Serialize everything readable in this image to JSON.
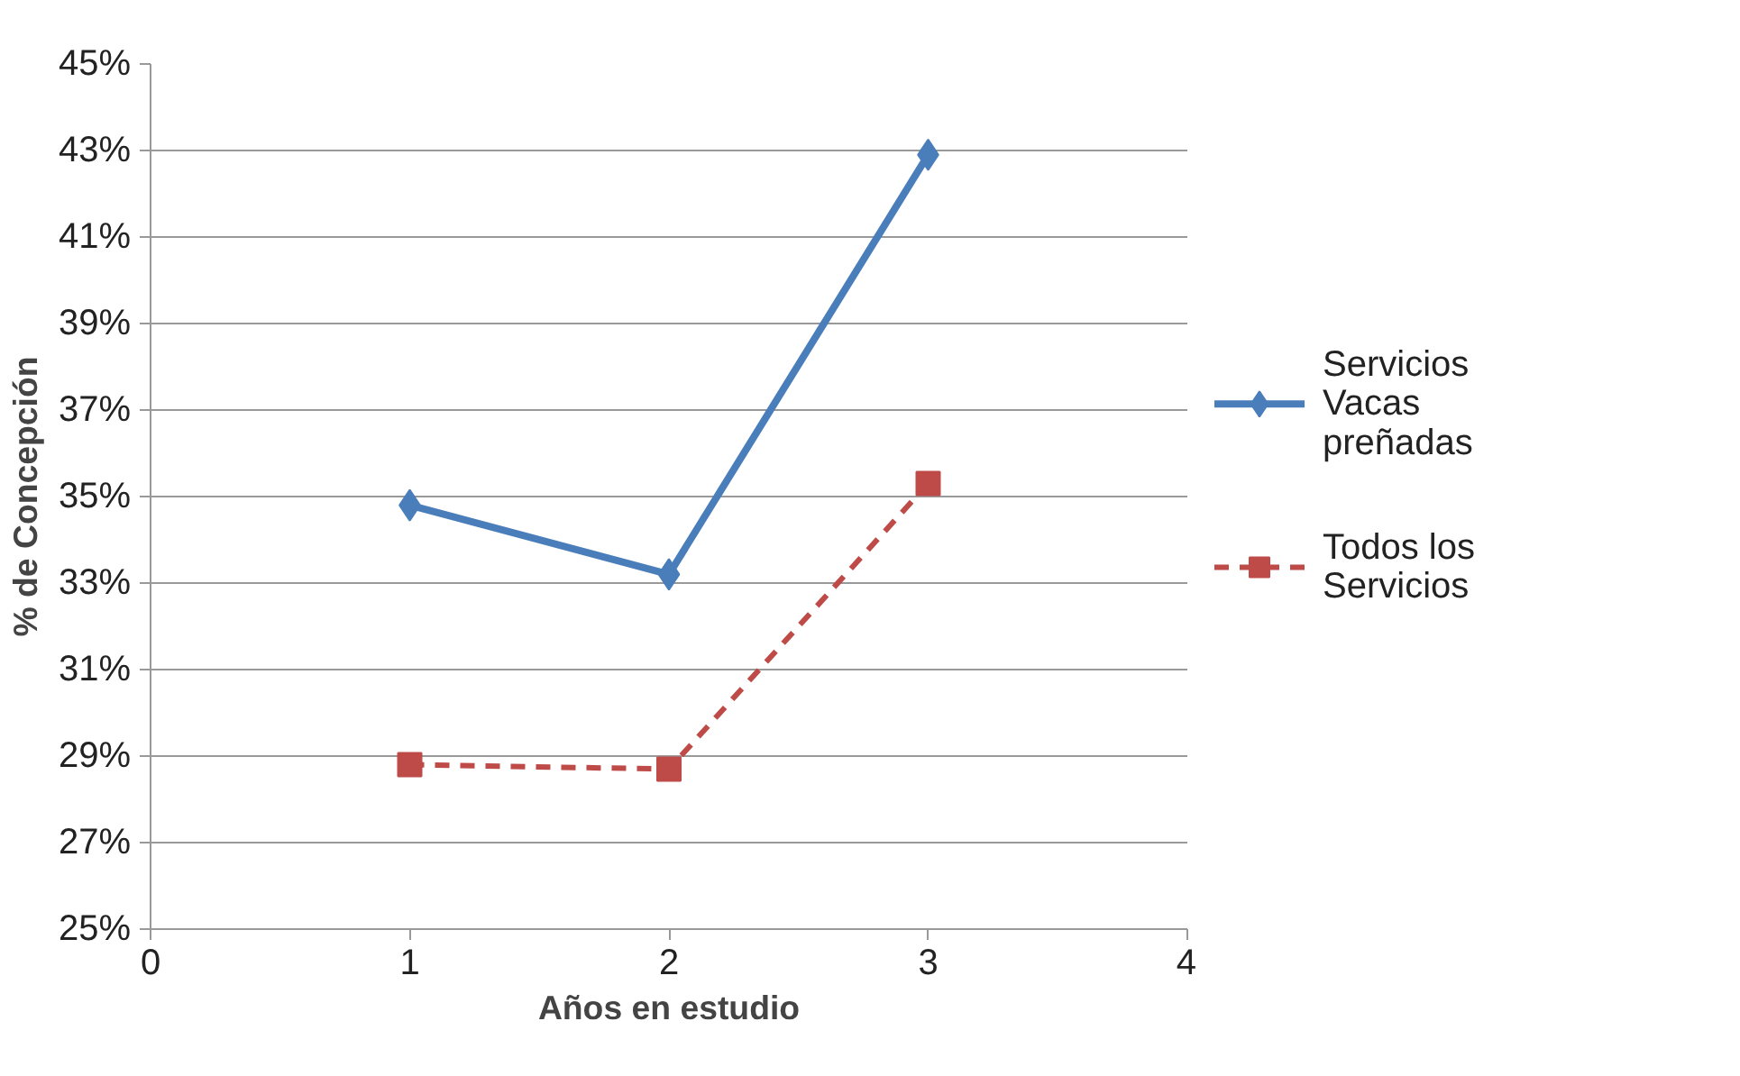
{
  "chart_data": {
    "type": "line",
    "xlabel": "Años en estudio",
    "ylabel": "% de Concepción",
    "x": [
      1,
      2,
      3
    ],
    "xlim": [
      0,
      4
    ],
    "xticks": [
      0,
      1,
      2,
      3,
      4
    ],
    "ylim": [
      25,
      45
    ],
    "yticks": [
      {
        "value": 25,
        "label": "25%"
      },
      {
        "value": 27,
        "label": "27%"
      },
      {
        "value": 29,
        "label": "29%"
      },
      {
        "value": 31,
        "label": "31%"
      },
      {
        "value": 33,
        "label": "33%"
      },
      {
        "value": 35,
        "label": "35%"
      },
      {
        "value": 37,
        "label": "37%"
      },
      {
        "value": 39,
        "label": "39%"
      },
      {
        "value": 41,
        "label": "41%"
      },
      {
        "value": 43,
        "label": "43%"
      },
      {
        "value": 45,
        "label": "45%"
      }
    ],
    "grid": "y",
    "legend": "right",
    "series": [
      {
        "name": "Servicios Vacas preñadas",
        "color": "#4a7ebb",
        "marker": "diamond",
        "line_style": "solid",
        "values": [
          34.8,
          33.2,
          42.9
        ]
      },
      {
        "name": "Todos los Servicios",
        "color": "#be4b48",
        "marker": "square",
        "line_style": "dashed",
        "values": [
          28.8,
          28.7,
          35.3
        ]
      }
    ]
  }
}
